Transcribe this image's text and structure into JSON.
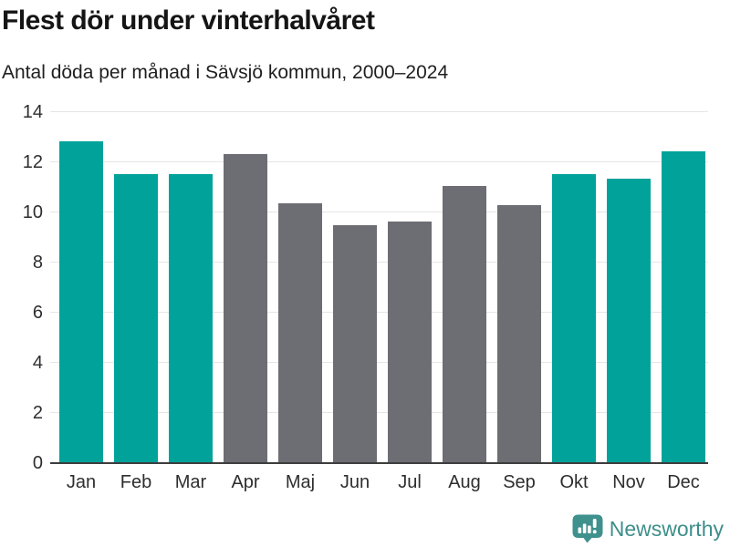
{
  "header": {
    "title": "Flest dör under vinterhalvåret",
    "subtitle": "Antal döda per månad i Sävsjö kommun, 2000–2024"
  },
  "chart_data": {
    "type": "bar",
    "title": "Flest dör under vinterhalvåret",
    "subtitle": "Antal döda per månad i Sävsjö kommun, 2000–2024",
    "categories": [
      "Jan",
      "Feb",
      "Mar",
      "Apr",
      "Maj",
      "Jun",
      "Jul",
      "Aug",
      "Sep",
      "Okt",
      "Nov",
      "Dec"
    ],
    "values": [
      12.84,
      11.52,
      11.52,
      12.32,
      10.36,
      9.48,
      9.64,
      11.04,
      10.28,
      11.52,
      11.36,
      12.44
    ],
    "bar_colors": [
      "#00a29a",
      "#00a29a",
      "#00a29a",
      "#6d6d74",
      "#6d6d74",
      "#6d6d74",
      "#6d6d74",
      "#6d6d74",
      "#6d6d74",
      "#00a29a",
      "#00a29a",
      "#00a29a"
    ],
    "season_colors": {
      "winter": "#00a29a",
      "summer": "#6d6d74"
    },
    "yticks": [
      0,
      2,
      4,
      6,
      8,
      10,
      12,
      14
    ],
    "ylim": [
      0,
      14
    ],
    "xlabel": "",
    "ylabel": "",
    "grid": true,
    "legend": false,
    "gridline_color": "#e6e6e6",
    "axis_color": "#3d3d3d"
  },
  "footer": {
    "brand": "Newsworthy",
    "brand_color": "#3e8e8a",
    "logo_color": "#3f918d"
  }
}
